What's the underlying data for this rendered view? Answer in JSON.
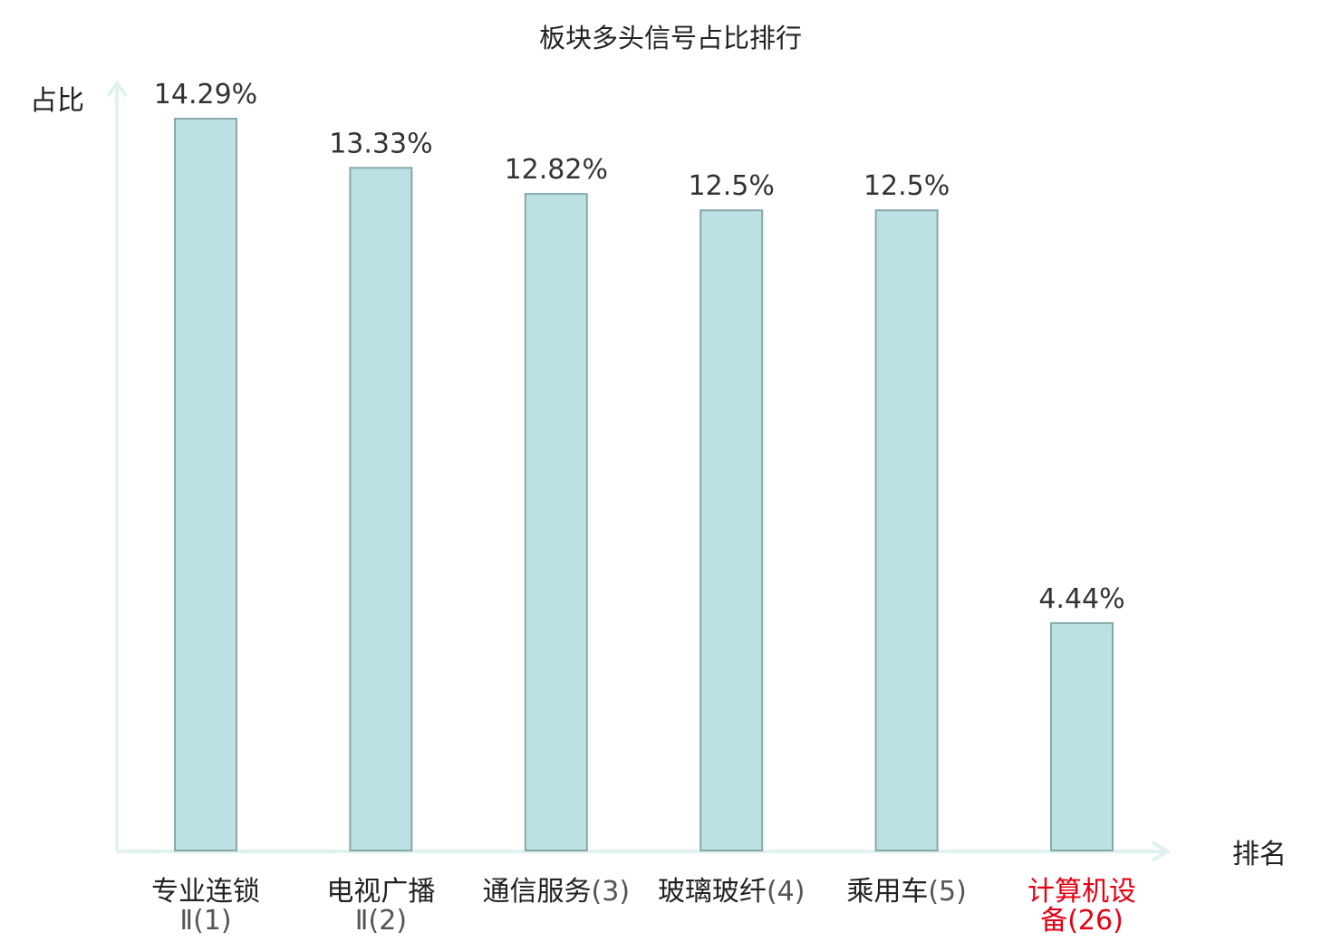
{
  "chart_data": {
    "type": "bar",
    "title": "板块多头信号占比排行",
    "ylabel": "占比",
    "xlabel": "排名",
    "ylim": [
      0,
      15.4
    ],
    "grid": false,
    "categories": [
      {
        "name": "专业连锁",
        "rank": "Ⅱ(1)",
        "highlight": false
      },
      {
        "name": "电视广播",
        "rank": "Ⅱ(2)",
        "highlight": false
      },
      {
        "name": "通信服务",
        "rank": "(3)",
        "highlight": false
      },
      {
        "name": "玻璃玻纤",
        "rank": "(4)",
        "highlight": false
      },
      {
        "name": "乘用车",
        "rank": "(5)",
        "highlight": false
      },
      {
        "name": "计算机设",
        "rank": "备(26)",
        "highlight": true
      }
    ],
    "values": [
      14.29,
      13.33,
      12.82,
      12.5,
      12.5,
      4.44
    ],
    "value_labels": [
      "14.29%",
      "13.33%",
      "12.82%",
      "12.5%",
      "12.5%",
      "4.44%"
    ],
    "colors": {
      "bar_fill": "#bde0e3",
      "bar_stroke": "#86a8aa",
      "axis": "#e0f2f0",
      "highlight_text": "#e60012",
      "text": "#222222"
    }
  }
}
